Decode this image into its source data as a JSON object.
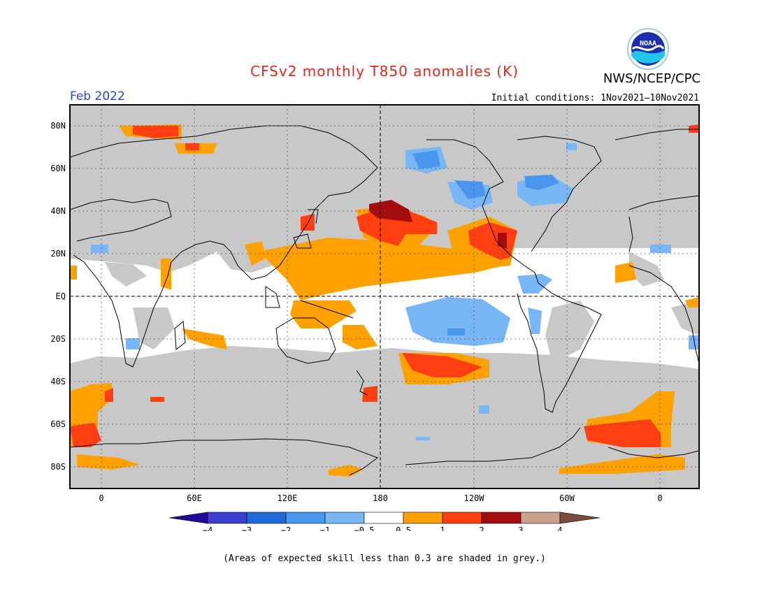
{
  "header": {
    "title": "CFSv2 monthly T850 anomalies (K)",
    "agency": "NWS/NCEP/CPC",
    "valid_month": "Feb 2022",
    "initial_conditions": "Initial conditions: 1Nov2021—10Nov2021",
    "logo_text": "NOAA"
  },
  "map": {
    "lat_ticks": [
      "80N",
      "60N",
      "40N",
      "20N",
      "EQ",
      "20S",
      "40S",
      "60S",
      "80S"
    ],
    "lon_ticks": [
      "0",
      "60E",
      "120E",
      "180",
      "120W",
      "60W",
      "0"
    ],
    "mask_color": "#c8c8c8",
    "land_outline_color": "#000000"
  },
  "legend": {
    "labels": [
      "−4",
      "−3",
      "−2",
      "−1",
      "−0.5",
      "0.5",
      "1",
      "2",
      "3",
      "4"
    ],
    "colors": [
      "#200a9a",
      "#3f3ed3",
      "#1e6ad8",
      "#4896ee",
      "#78b6f6",
      "#ffffff",
      "#ffa100",
      "#ff3e12",
      "#a50d0d",
      "#c9a08c",
      "#7a4a3a"
    ]
  },
  "footnote": "(Areas of expected skill less than 0.3 are shaded in grey.)"
}
